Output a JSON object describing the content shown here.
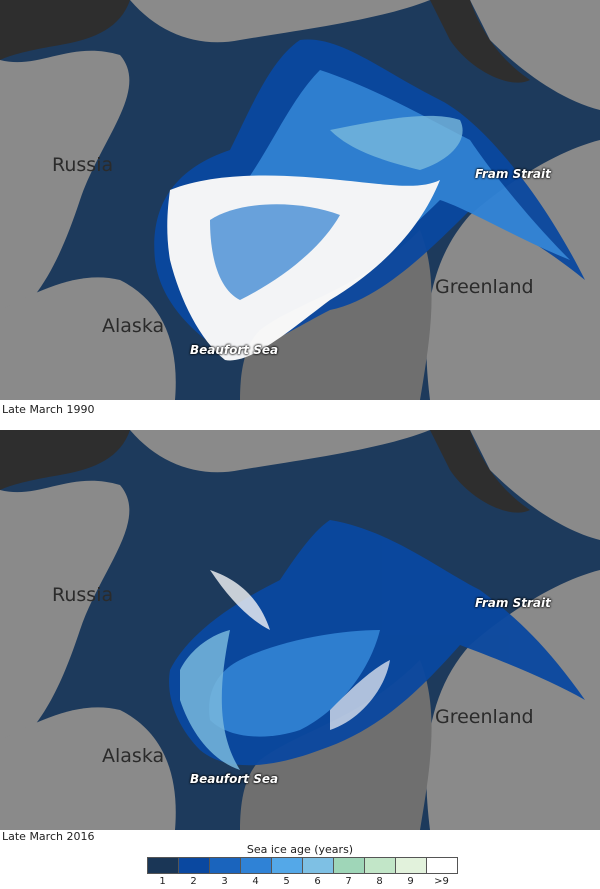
{
  "maps": [
    {
      "caption": "Late March 1990",
      "labels": {
        "russia": "Russia",
        "alaska": "Alaska",
        "greenland": "Greenland",
        "fram_strait": "Fram Strait",
        "beaufort_sea": "Beaufort Sea"
      }
    },
    {
      "caption": "Late March 2016",
      "labels": {
        "russia": "Russia",
        "alaska": "Alaska",
        "greenland": "Greenland",
        "fram_strait": "Fram Strait",
        "beaufort_sea": "Beaufort Sea"
      }
    }
  ],
  "legend": {
    "title": "Sea ice age (years)",
    "bins": [
      {
        "label": "1",
        "color": "#1a3656"
      },
      {
        "label": "2",
        "color": "#0a48a0"
      },
      {
        "label": "3",
        "color": "#1a64bd"
      },
      {
        "label": "4",
        "color": "#2f82d6"
      },
      {
        "label": "5",
        "color": "#54a8e8"
      },
      {
        "label": "6",
        "color": "#7ec0e4"
      },
      {
        "label": "7",
        "color": "#9fd6b8"
      },
      {
        "label": "8",
        "color": "#c2e6c8"
      },
      {
        "label": "9",
        "color": "#e2f2dc"
      },
      {
        "label": ">9",
        "color": "#ffffff"
      }
    ]
  }
}
